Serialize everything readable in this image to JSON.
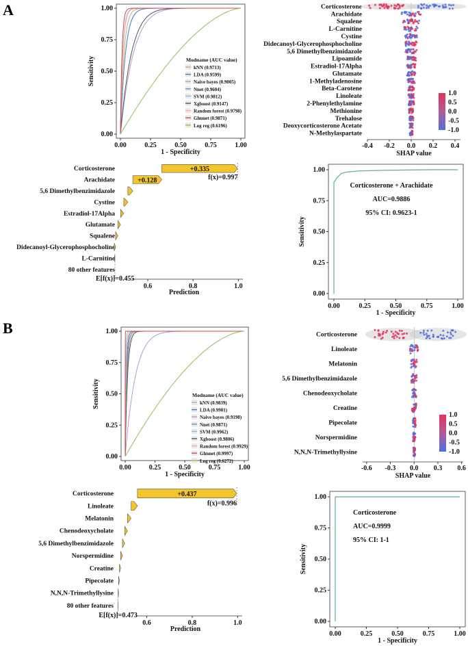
{
  "panels": {
    "a": "A",
    "b": "B"
  },
  "colors": {
    "roc": [
      "#c8a882",
      "#4a78c0",
      "#b59ad0",
      "#5c8fce",
      "#86bde6",
      "#555555",
      "#f2b08e",
      "#d64545",
      "#8fbf5a"
    ],
    "shap_low": "#4f6fe0",
    "shap_high": "#e2345a",
    "waterfall": "#f2c62b",
    "neg": "#c0304a",
    "single_roc": "#5aae9a"
  },
  "chart_data": [
    {
      "id": "A_roc",
      "type": "line",
      "title": "",
      "xlabel": "1 - Specificity",
      "ylabel": "Sensitivity",
      "xlim": [
        0,
        1
      ],
      "ylim": [
        0,
        1
      ],
      "xticks": [
        "0.00",
        "0.25",
        "0.50",
        "0.75",
        "1.00"
      ],
      "yticks": [
        "0.00",
        "0.25",
        "0.50",
        "0.75",
        "1.00"
      ],
      "legend_title": "Modname (AUC value)",
      "series": [
        {
          "name": "kNN (0.9713)",
          "auc": 0.9713
        },
        {
          "name": "LDA (0.9599)",
          "auc": 0.9599
        },
        {
          "name": "Naive bayes (0.9005)",
          "auc": 0.9005
        },
        {
          "name": "Nnet (0.9604)",
          "auc": 0.9604
        },
        {
          "name": "SVM (0.9812)",
          "auc": 0.9812
        },
        {
          "name": "Xgboost (0.9147)",
          "auc": 0.9147
        },
        {
          "name": "Random forest (0.9798)",
          "auc": 0.9798
        },
        {
          "name": "Glmnet (0.9871)",
          "auc": 0.9871
        },
        {
          "name": "Log reg (0.6196)",
          "auc": 0.6196
        }
      ]
    },
    {
      "id": "A_shap",
      "type": "scatter",
      "xlabel": "SHAP value",
      "xlim": [
        -0.4,
        0.45
      ],
      "xticks": [
        -0.4,
        -0.2,
        0.0,
        0.2,
        0.4
      ],
      "xtick_labels": [
        "-0.4",
        "-0.2",
        "0.0",
        "0.2",
        "0.4"
      ],
      "features": [
        "Corticosterone",
        "Arachidate",
        "Squalene",
        "L-Carnitine",
        "Cystine",
        "Didecanoyl-Glycerophosphocholine",
        "5,6 Dimethylbenzimidazole",
        "Lipoamide",
        "Estradiol-17Alpha",
        "Glutamate",
        "1-Methyladenosine",
        "Beta-Carotene",
        "Linoleate",
        "2-Phenylethylamine",
        "Methionine",
        "Trehalose",
        "Deoxycorticosterone Acetate",
        "N-Methylaspartate"
      ],
      "spread": [
        0.42,
        0.07,
        0.06,
        0.05,
        0.045,
        0.04,
        0.04,
        0.035,
        0.03,
        0.03,
        0.025,
        0.02,
        0.02,
        0.02,
        0.015,
        0.015,
        0.012,
        0.01
      ],
      "colorbar_ticks": [
        "1.0",
        "0.5",
        "0.0",
        "-0.5",
        "-1.0"
      ]
    },
    {
      "id": "A_waterfall",
      "type": "bar",
      "xlabel": "Prediction",
      "xlim": [
        0.44,
        1.02
      ],
      "xticks": [
        0.6,
        0.8,
        1.0
      ],
      "xtick_labels": [
        "0.6",
        "0.8",
        "1.0"
      ],
      "features": [
        "Corticosterone",
        "Arachidate",
        "5,6 Dimethylbenzimidazole",
        "Cystine",
        "Estradiol-17Alpha",
        "Glutamate",
        "Squalene",
        "Didecanoyl-Glycerophosphocholine",
        "L-Carnitine",
        "80 other features"
      ],
      "contributions": [
        0.335,
        0.128,
        0.022,
        0.018,
        0.014,
        0.012,
        0.01,
        0.006,
        -0.003,
        0.0
      ],
      "contribution_labels": [
        "+0.335",
        "+0.128",
        "",
        "",
        "",
        "",
        "",
        "",
        "",
        ""
      ],
      "base": 0.455,
      "fx": 0.997,
      "base_label": "E[f(x)]=0.455",
      "fx_label": "f(x)=0.997"
    },
    {
      "id": "A_single_roc",
      "type": "line",
      "xlabel": "1 - Specificity",
      "ylabel": "Sensitivity",
      "xlim": [
        0,
        1
      ],
      "ylim": [
        0,
        1
      ],
      "xticks": [
        "0.00",
        "0.25",
        "0.50",
        "0.75",
        "1.00"
      ],
      "yticks": [
        "0.00",
        "0.25",
        "0.50",
        "0.75",
        "1.00"
      ],
      "x": [
        0,
        0,
        0.01,
        0.02,
        0.04,
        0.06,
        0.1,
        0.2,
        0.4,
        0.6,
        0.8,
        1.0
      ],
      "y": [
        0,
        0.9,
        0.91,
        0.93,
        0.95,
        0.97,
        0.98,
        0.99,
        0.995,
        0.998,
        1.0,
        1.0
      ],
      "annotations": [
        "Corticosterone + Arachidate",
        "AUC=0.9886",
        "95% CI: 0.9623-1"
      ]
    },
    {
      "id": "B_roc",
      "type": "line",
      "xlabel": "1 - Specificity",
      "ylabel": "Sensitivity",
      "xlim": [
        0,
        1
      ],
      "ylim": [
        0,
        1
      ],
      "xticks": [
        "0.00",
        "0.25",
        "0.50",
        "0.75",
        "1.00"
      ],
      "yticks": [
        "0.00",
        "0.25",
        "0.50",
        "0.75",
        "1.00"
      ],
      "legend_title": "Modname (AUC value)",
      "series": [
        {
          "name": "kNN (0.9839)",
          "auc": 0.9839
        },
        {
          "name": "LDA (0.9901)",
          "auc": 0.9901
        },
        {
          "name": "Naive bayes (0.9198)",
          "auc": 0.9198
        },
        {
          "name": "Nnet (0.9871)",
          "auc": 0.9871
        },
        {
          "name": "SVM (0.9962)",
          "auc": 0.9962
        },
        {
          "name": "Xgboost (0.9806)",
          "auc": 0.9806
        },
        {
          "name": "Random forest (0.9929)",
          "auc": 0.9929
        },
        {
          "name": "Glmnet (0.9997)",
          "auc": 0.9997
        },
        {
          "name": "Log reg (0.6272)",
          "auc": 0.6272
        }
      ]
    },
    {
      "id": "B_shap",
      "type": "scatter",
      "xlabel": "SHAP value",
      "xlim": [
        -0.65,
        0.62
      ],
      "xticks": [
        -0.6,
        -0.3,
        0.0,
        0.3,
        0.6
      ],
      "xtick_labels": [
        "-0.6",
        "-0.3",
        "0.0",
        "0.3",
        "0.6"
      ],
      "features": [
        "Corticosterone",
        "Linoleate",
        "Melatonin",
        "5,6 Dimethylbenzimidazole",
        "Chenodeoxycholate",
        "Creatine",
        "Pipecolate",
        "Norspermidine",
        "N,N,N-Trimethyllysine"
      ],
      "spread": [
        0.55,
        0.04,
        0.03,
        0.025,
        0.02,
        0.02,
        0.015,
        0.012,
        0.01
      ],
      "colorbar_ticks": [
        "1.0",
        "0.5",
        "0.0",
        "-0.5",
        "-1.0"
      ]
    },
    {
      "id": "B_waterfall",
      "type": "bar",
      "xlabel": "Prediction",
      "xlim": [
        0.46,
        1.02
      ],
      "xticks": [
        0.6,
        0.8,
        1.0
      ],
      "xtick_labels": [
        "0.6",
        "0.8",
        "1.0"
      ],
      "features": [
        "Corticosterone",
        "Linoleate",
        "Melatonin",
        "Chenodeoxycholate",
        "5,6 Dimethylbenzimidazole",
        "Norspermidine",
        "Creatine",
        "Pipecolate",
        "N,N,N-Trimethyllysine",
        "80 other features"
      ],
      "contributions": [
        0.437,
        0.028,
        0.016,
        0.012,
        0.01,
        0.008,
        0.005,
        0.004,
        0.002,
        0.001
      ],
      "contribution_labels": [
        "+0.437",
        "",
        "",
        "",
        "",
        "",
        "",
        "",
        "",
        ""
      ],
      "base": 0.473,
      "fx": 0.996,
      "base_label": "E[f(x)]=0.473",
      "fx_label": "f(x)=0.996"
    },
    {
      "id": "B_single_roc",
      "type": "line",
      "xlabel": "1 - Specificity",
      "ylabel": "Sensitivity",
      "xlim": [
        0,
        1
      ],
      "ylim": [
        0,
        1
      ],
      "xticks": [
        "0.00",
        "0.25",
        "0.50",
        "0.75",
        "1.00"
      ],
      "yticks": [
        "0.00",
        "0.25",
        "0.50",
        "0.75",
        "1.00"
      ],
      "x": [
        0,
        0,
        1.0
      ],
      "y": [
        0,
        1.0,
        1.0
      ],
      "annotations": [
        "Corticosterone",
        "AUC=0.9999",
        "95% CI: 1-1"
      ]
    }
  ]
}
